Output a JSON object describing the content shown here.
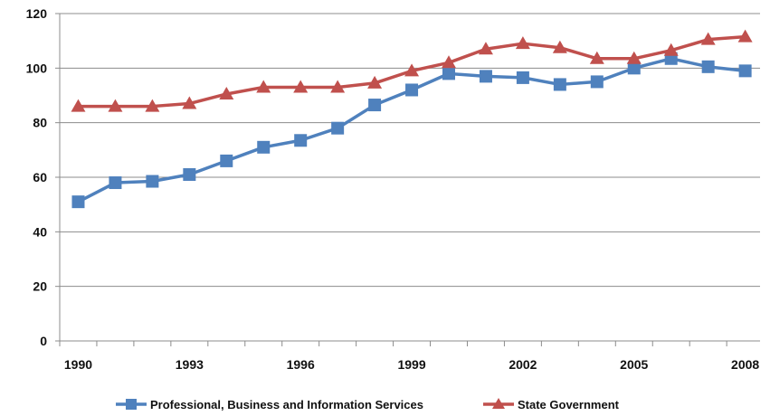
{
  "chart_data": {
    "type": "line",
    "title": "",
    "xlabel": "",
    "ylabel": "",
    "x": [
      1990,
      1991,
      1992,
      1993,
      1994,
      1995,
      1996,
      1997,
      1998,
      1999,
      2000,
      2001,
      2002,
      2003,
      2004,
      2005,
      2006,
      2007,
      2008
    ],
    "x_tick_labels": [
      "1990",
      "1993",
      "1996",
      "1999",
      "2002",
      "2005",
      "2008"
    ],
    "x_tick_values": [
      1990,
      1993,
      1996,
      1999,
      2002,
      2005,
      2008
    ],
    "ylim": [
      0,
      120
    ],
    "y_ticks": [
      0,
      20,
      40,
      60,
      80,
      100,
      120
    ],
    "grid": "horizontal",
    "legend_position": "bottom",
    "series": [
      {
        "name": "Professional, Business and Information  Services",
        "color": "#4F81BD",
        "marker": "square",
        "values": [
          51,
          58,
          58.5,
          61,
          66,
          71,
          73.5,
          78,
          86.5,
          92,
          98,
          97,
          96.5,
          94,
          95,
          100,
          103.5,
          100.5,
          99
        ]
      },
      {
        "name": "State Government",
        "color": "#C0504D",
        "marker": "triangle",
        "values": [
          86,
          86,
          86,
          87,
          90.5,
          93,
          93,
          93,
          94.5,
          99,
          102,
          107,
          109,
          107.5,
          103.5,
          103.5,
          106.5,
          110.5,
          111.5
        ]
      }
    ]
  }
}
